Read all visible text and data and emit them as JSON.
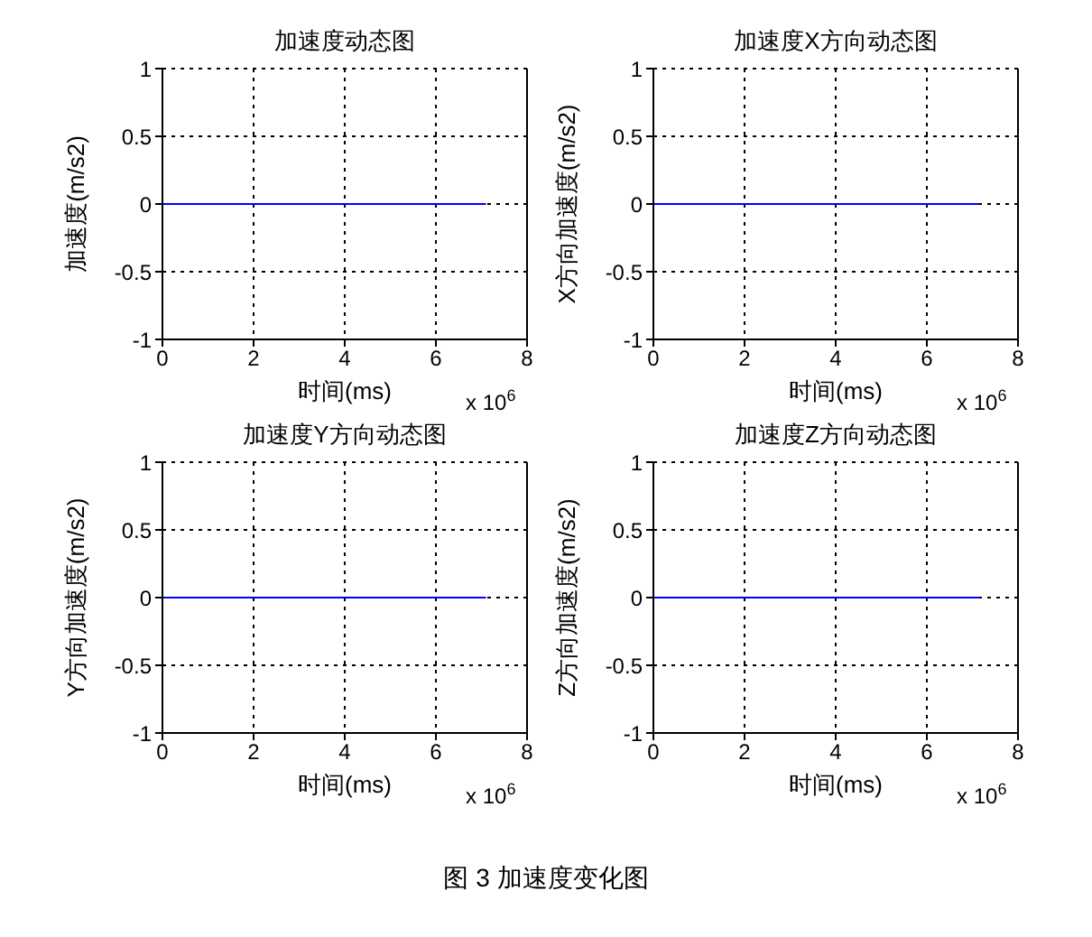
{
  "chart_data": [
    {
      "type": "line",
      "title": "加速度动态图",
      "xlabel": "时间(ms)",
      "ylabel": "加速度(m/s2)",
      "x": [
        0,
        7.1
      ],
      "series": [
        {
          "color": "#0000ff",
          "values": [
            0,
            0
          ]
        }
      ],
      "xlim": [
        0,
        8
      ],
      "xticks": [
        0,
        2,
        4,
        6,
        8
      ],
      "ylim": [
        -1,
        1
      ],
      "yticks": [
        -1,
        -0.5,
        0,
        0.5,
        1
      ],
      "grid": true,
      "annotations": [
        "x 10$^{6}$"
      ]
    },
    {
      "type": "line",
      "title": "加速度X方向动态图",
      "xlabel": "时间(ms)",
      "ylabel": "X方向加速度(m/s2)",
      "x": [
        0,
        7.15
      ],
      "series": [
        {
          "color": "#0000ff",
          "values": [
            0,
            0
          ]
        }
      ],
      "xlim": [
        0,
        8
      ],
      "xticks": [
        0,
        2,
        4,
        6,
        8
      ],
      "ylim": [
        -1,
        1
      ],
      "yticks": [
        -1,
        -0.5,
        0,
        0.5,
        1
      ],
      "grid": true,
      "annotations": [
        "x 10$^{6}$"
      ]
    },
    {
      "type": "line",
      "title": "加速度Y方向动态图",
      "xlabel": "时间(ms)",
      "ylabel": "Y方向加速度(m/s2)",
      "x": [
        0,
        7.1
      ],
      "series": [
        {
          "color": "#0000ff",
          "values": [
            0,
            0
          ]
        }
      ],
      "xlim": [
        0,
        8
      ],
      "xticks": [
        0,
        2,
        4,
        6,
        8
      ],
      "ylim": [
        -1,
        1
      ],
      "yticks": [
        -1,
        -0.5,
        0,
        0.5,
        1
      ],
      "grid": true,
      "annotations": [
        "x 10$^{6}$"
      ]
    },
    {
      "type": "line",
      "title": "加速度Z方向动态图",
      "xlabel": "时间(ms)",
      "ylabel": "Z方向加速度(m/s2)",
      "x": [
        0,
        7.15
      ],
      "series": [
        {
          "color": "#0000ff",
          "values": [
            0,
            0
          ]
        }
      ],
      "xlim": [
        0,
        8
      ],
      "xticks": [
        0,
        2,
        4,
        6,
        8
      ],
      "ylim": [
        -1,
        1
      ],
      "yticks": [
        -1,
        -0.5,
        0,
        0.5,
        1
      ],
      "grid": true,
      "annotations": [
        "x 10$^{6}$",
        "图 3  加速度变化图"
      ]
    }
  ]
}
